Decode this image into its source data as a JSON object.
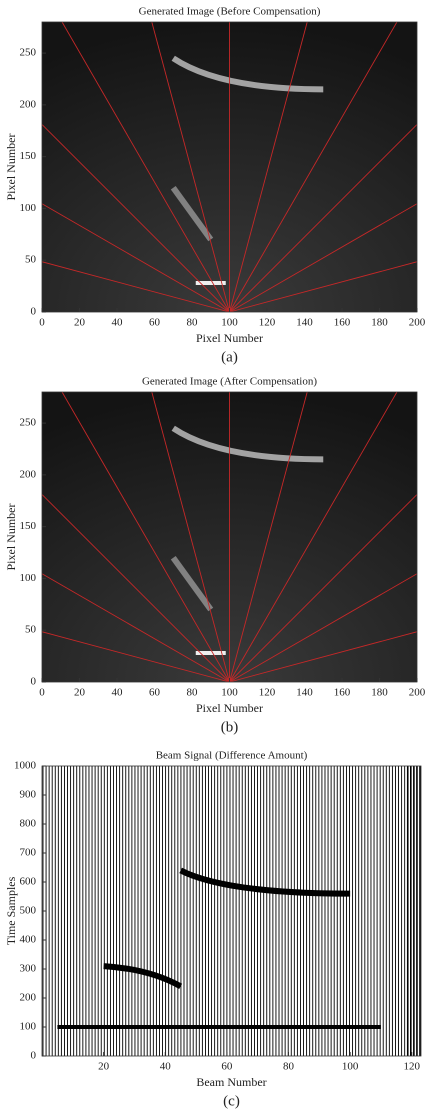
{
  "chart_data": [
    {
      "type": "image",
      "title": "Generated Image (Before Compensation)",
      "xlabel": "Pixel Number",
      "ylabel": "Pixel Number",
      "xlim": [
        0,
        200
      ],
      "xticks": [
        0,
        20,
        40,
        60,
        80,
        100,
        120,
        140,
        160,
        180,
        200
      ],
      "ylim": [
        0,
        280
      ],
      "yticks": [
        0,
        50,
        100,
        150,
        200,
        250
      ],
      "caption": "(a)"
    },
    {
      "type": "image",
      "title": "Generated Image (After Compensation)",
      "xlabel": "Pixel Number",
      "ylabel": "Pixel Number",
      "xlim": [
        0,
        200
      ],
      "xticks": [
        0,
        20,
        40,
        60,
        80,
        100,
        120,
        140,
        160,
        180,
        200
      ],
      "ylim": [
        0,
        280
      ],
      "yticks": [
        0,
        50,
        100,
        150,
        200,
        250
      ],
      "caption": "(b)"
    },
    {
      "type": "signal",
      "title": "Beam Signal (Difference Amount)",
      "xlabel": "Beam Number",
      "ylabel": "Time Samples",
      "xlim": [
        0,
        123
      ],
      "xticks": [
        20,
        40,
        60,
        80,
        100,
        120
      ],
      "ylim": [
        0,
        1000
      ],
      "yticks": [
        0,
        100,
        200,
        300,
        400,
        500,
        600,
        700,
        800,
        900,
        1000
      ],
      "caption": "(c)"
    }
  ]
}
